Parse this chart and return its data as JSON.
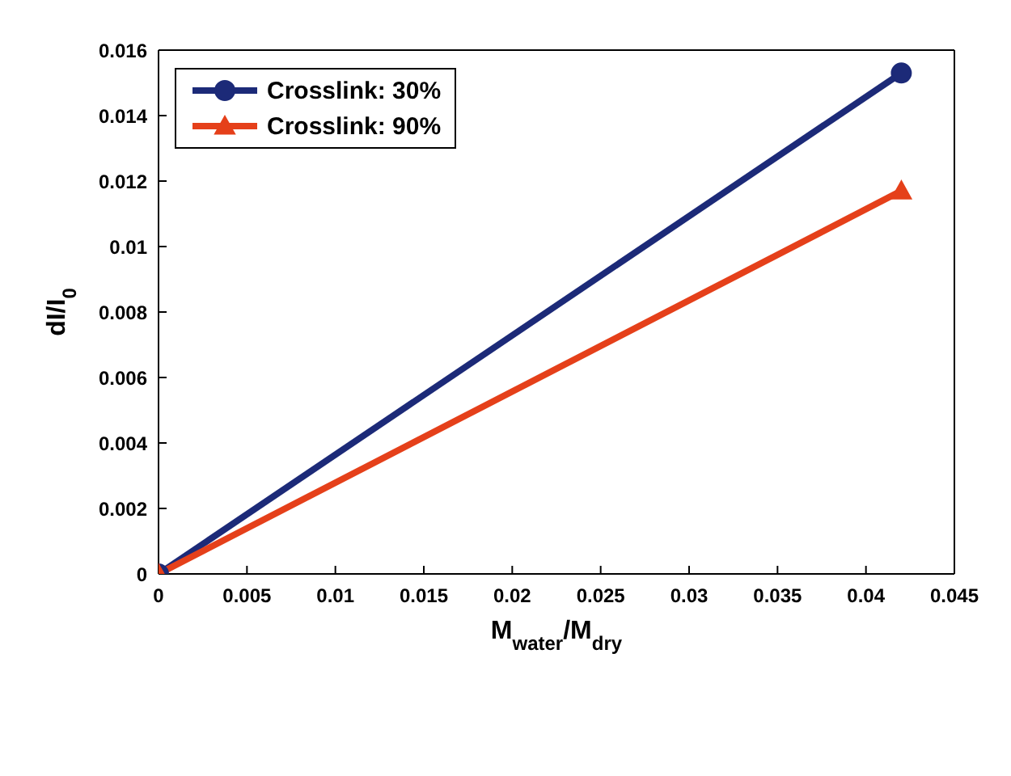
{
  "chart_data": {
    "type": "line",
    "xlabel": "M$_{water}$/M$_{dry}$",
    "ylabel": "dI/I$_{0}$",
    "x": [
      0,
      0.042
    ],
    "series": [
      {
        "name": "Crosslink: 30%",
        "color": "#1c2a78",
        "values": [
          0,
          0.0153
        ],
        "marker": "circle"
      },
      {
        "name": "Crosslink: 90%",
        "color": "#e5401a",
        "values": [
          0,
          0.0117
        ],
        "marker": "triangle"
      }
    ],
    "xlim": [
      0,
      0.045
    ],
    "xticks": [
      0,
      0.005,
      0.01,
      0.015,
      0.02,
      0.025,
      0.03,
      0.035,
      0.04,
      0.045
    ],
    "ylim": [
      0,
      0.016
    ],
    "yticks": [
      0,
      0.002,
      0.004,
      0.006,
      0.008,
      0.01,
      0.012,
      0.014,
      0.016
    ],
    "legend": "top left",
    "line_style": "solid"
  }
}
